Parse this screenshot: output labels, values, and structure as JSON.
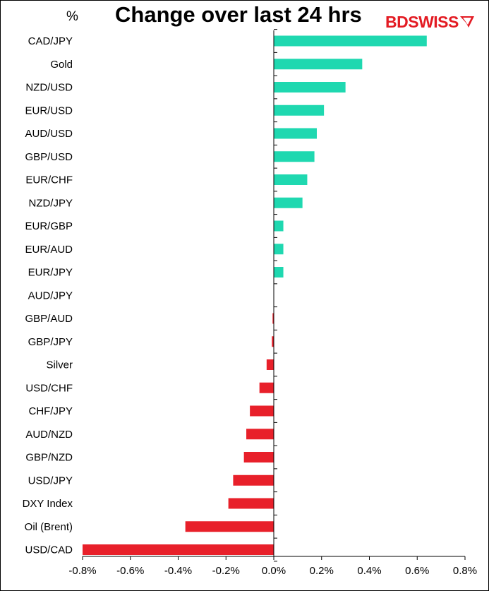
{
  "header": {
    "unit": "%",
    "title": "Change over last 24 hrs",
    "logo": {
      "text_bold": "BD",
      "text_rest": "SWISS",
      "color": "#e31b23"
    }
  },
  "chart_data": {
    "type": "bar",
    "orientation": "horizontal",
    "title": "Change over last 24 hrs",
    "ylabel": "%",
    "categories": [
      "CAD/JPY",
      "Gold",
      "NZD/USD",
      "EUR/USD",
      "AUD/USD",
      "GBP/USD",
      "EUR/CHF",
      "NZD/JPY",
      "EUR/GBP",
      "EUR/AUD",
      "EUR/JPY",
      "AUD/JPY",
      "GBP/AUD",
      "GBP/JPY",
      "Silver",
      "USD/CHF",
      "CHF/JPY",
      "AUD/NZD",
      "GBP/NZD",
      "USD/JPY",
      "DXY Index",
      "Oil (Brent)",
      "USD/CAD"
    ],
    "values": [
      0.64,
      0.37,
      0.3,
      0.21,
      0.18,
      0.17,
      0.14,
      0.12,
      0.04,
      0.04,
      0.04,
      0.0,
      -0.005,
      -0.008,
      -0.03,
      -0.06,
      -0.1,
      -0.115,
      -0.125,
      -0.17,
      -0.19,
      -0.37,
      -0.8
    ],
    "xlim": [
      -0.8,
      0.8
    ],
    "tick_values": [
      -0.8,
      -0.6,
      -0.4,
      -0.2,
      0.0,
      0.2,
      0.4,
      0.6,
      0.8
    ],
    "tick_labels": [
      "-0.8%",
      "-0.6%",
      "-0.4%",
      "-0.2%",
      "0.0%",
      "0.2%",
      "0.4%",
      "0.6%",
      "0.8%"
    ],
    "colors": {
      "positive": "#1fd8b0",
      "negative": "#e8202a",
      "axis": "#000000"
    },
    "grid": false,
    "legend": "none"
  }
}
